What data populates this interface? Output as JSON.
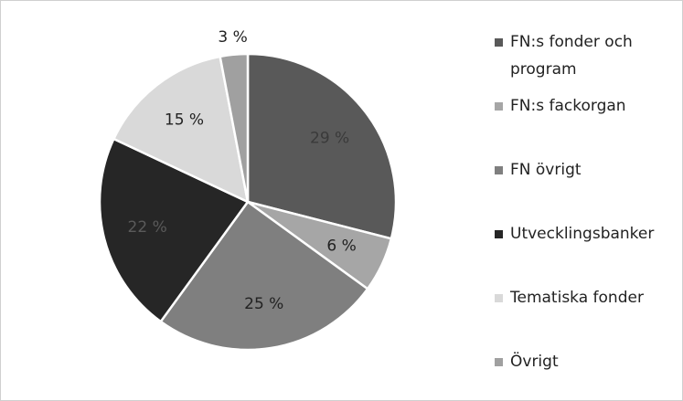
{
  "chart_data": {
    "type": "pie",
    "categories": [
      "FN:s fonder och program",
      "FN:s fackorgan",
      "FN övrigt",
      "Utvecklingsbanker",
      "Tematiska fonder",
      "Övrigt"
    ],
    "values": [
      29,
      6,
      25,
      22,
      15,
      3
    ],
    "value_labels": [
      "29 %",
      "6 %",
      "25 %",
      "22 %",
      "15 %",
      "3 %"
    ],
    "colors": [
      "#595959",
      "#a6a6a6",
      "#7f7f7f",
      "#262626",
      "#d9d9d9",
      "#a0a0a0"
    ],
    "legend": "right"
  }
}
